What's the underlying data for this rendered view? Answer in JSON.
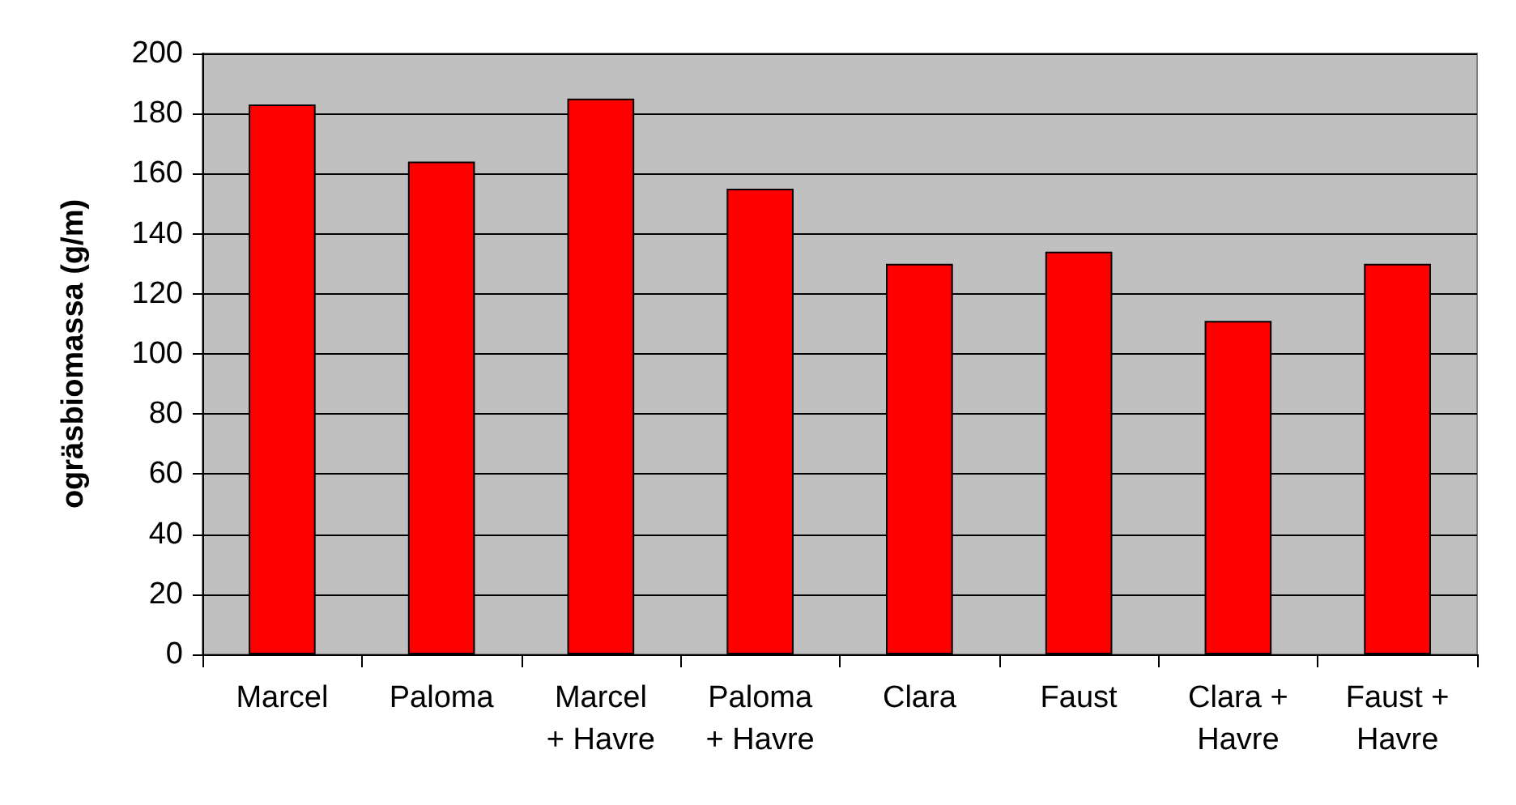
{
  "chart_data": {
    "type": "bar",
    "ylabel": "ogräsbiomassa (g/m)",
    "categories": [
      "Marcel",
      "Paloma",
      "Marcel\n+ Havre",
      "Paloma\n+ Havre",
      "Clara",
      "Faust",
      "Clara +\nHavre",
      "Faust +\nHavre"
    ],
    "values": [
      183,
      164,
      185,
      155,
      130,
      134,
      111,
      130
    ],
    "color": "#ff0000",
    "ylim": [
      0,
      200
    ],
    "yticks": [
      0,
      20,
      40,
      60,
      80,
      100,
      120,
      140,
      160,
      180,
      200
    ],
    "grid": "y"
  }
}
